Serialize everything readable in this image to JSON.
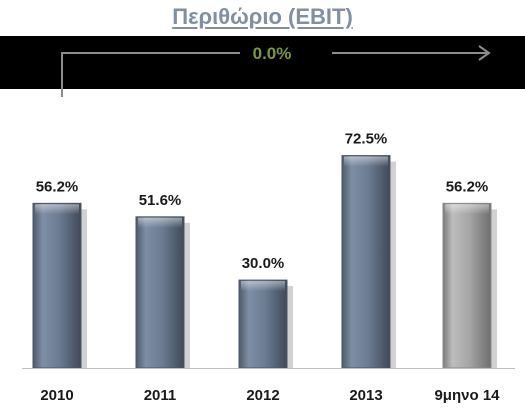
{
  "title": "Περιθώριο (EBIT)",
  "cagr_label": "0.0%",
  "colors": {
    "title": "#7f8fa6",
    "bar": "#6b7b91",
    "bar_highlight": "#a5a5a5",
    "label": "#1a1a1a",
    "band": "#000000",
    "cagr_text": "#7a9a3a",
    "cagr_arrow": "#8c8c8c"
  },
  "chart_data": {
    "type": "bar",
    "categories": [
      "2010",
      "2011",
      "2012",
      "2013",
      "9μηνο 14"
    ],
    "values": [
      56.2,
      51.6,
      30.0,
      72.5,
      56.2
    ],
    "data_labels": [
      "56.2%",
      "51.6%",
      "30.0%",
      "72.5%",
      "56.2%"
    ],
    "highlight_index": 4,
    "ylim": [
      0,
      100
    ],
    "grid": false,
    "legend": "none",
    "xlabel": "",
    "ylabel": ""
  }
}
